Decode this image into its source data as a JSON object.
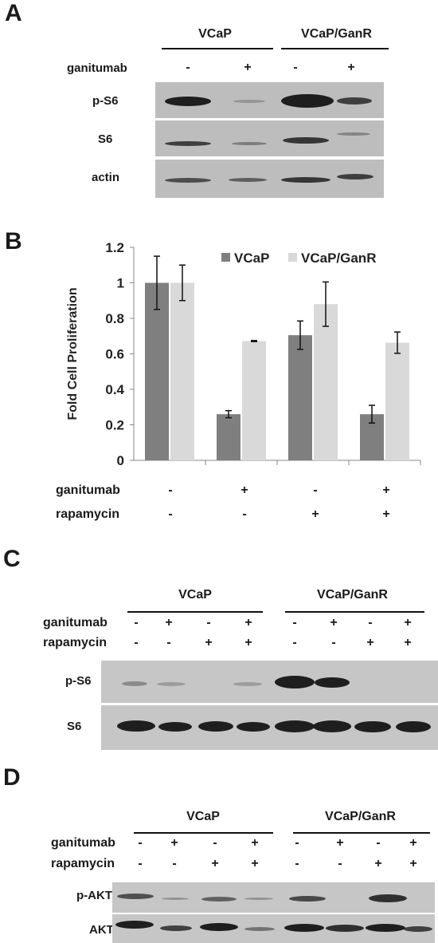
{
  "panels": {
    "a": {
      "letter": "A",
      "groups": [
        "VCaP",
        "VCaP/GanR"
      ],
      "treatment_label": "ganitumab",
      "treatment_signs": [
        "-",
        "+",
        "-",
        "+"
      ],
      "rows": [
        "p-S6",
        "S6",
        "actin"
      ]
    },
    "b": {
      "letter": "B",
      "row1_label": "ganitumab",
      "row1_signs": [
        "-",
        "+",
        "-",
        "+"
      ],
      "row2_label": "rapamycin",
      "row2_signs": [
        "-",
        "-",
        "+",
        "+"
      ]
    },
    "c": {
      "letter": "C",
      "groups": [
        "VCaP",
        "VCaP/GanR"
      ],
      "row1_label": "ganitumab",
      "row1_signs": [
        "-",
        "+",
        "-",
        "+",
        "-",
        "+",
        "-",
        "+"
      ],
      "row2_label": "rapamycin",
      "row2_signs": [
        "-",
        "-",
        "+",
        "+",
        "-",
        "-",
        "+",
        "+"
      ],
      "rows": [
        "p-S6",
        "S6"
      ]
    },
    "d": {
      "letter": "D",
      "groups": [
        "VCaP",
        "VCaP/GanR"
      ],
      "row1_label": "ganitumab",
      "row1_signs": [
        "-",
        "+",
        "-",
        "+",
        "-",
        "+",
        "-",
        "+"
      ],
      "row2_label": "rapamycin",
      "row2_signs": [
        "-",
        "-",
        "+",
        "+",
        "-",
        "-",
        "+",
        "+"
      ],
      "rows": [
        "p-AKT",
        "AKT"
      ]
    }
  },
  "chart_data": {
    "type": "bar",
    "ylabel": "Fold Cell Proliferation",
    "xlabel": "",
    "ylim": [
      0,
      1.2
    ],
    "yticks": [
      "0",
      "0.2",
      "0.4",
      "0.6",
      "0.8",
      "1",
      "1.2"
    ],
    "grid": false,
    "legend": "top-right",
    "categories": [
      "",
      "",
      "",
      ""
    ],
    "series": [
      {
        "name": "VCaP",
        "color": "#7f7f7f",
        "values": [
          1.0,
          0.26,
          0.705,
          0.26
        ],
        "errors": [
          0.15,
          0.02,
          0.08,
          0.05
        ]
      },
      {
        "name": "VCaP/GanR",
        "color": "#d9d9d9",
        "values": [
          1.0,
          0.672,
          0.88,
          0.663
        ],
        "errors": [
          0.1,
          0.003,
          0.125,
          0.06
        ]
      }
    ]
  }
}
